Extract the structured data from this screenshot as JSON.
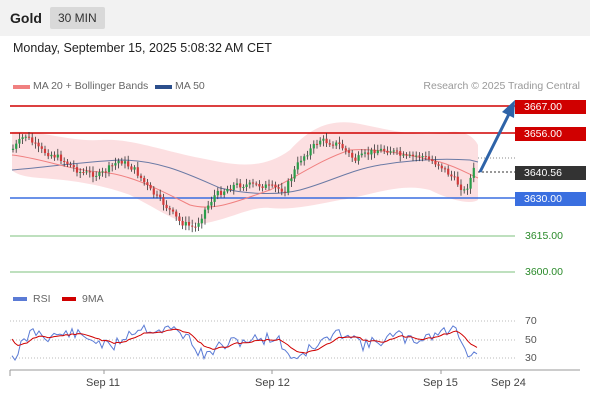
{
  "header": {
    "asset": "Gold",
    "interval": "30 MIN"
  },
  "datetime": "Monday, September 15, 2025 5:08:32 AM CET",
  "legend": {
    "ma20": {
      "label": "MA 20 + Bollinger Bands",
      "color": "#f08080"
    },
    "ma50": {
      "label": "MA 50",
      "color": "#2c4f8c"
    },
    "copyright": "Research © 2025 Trading Central"
  },
  "price_levels": {
    "r2": "3667.00",
    "r1": "3656.00",
    "current": "3640.56",
    "pivot": "3630.00",
    "s1": "3615.00",
    "s2": "3600.00"
  },
  "rsi_legend": {
    "rsi": "RSI",
    "ma9": "9MA",
    "rsi_color": "#5b7bd5",
    "ma9_color": "#d00000"
  },
  "rsi_ticks": [
    "70",
    "50",
    "30"
  ],
  "x_axis": [
    "Sep 11",
    "Sep 12",
    "Sep 15",
    "Sep 24"
  ],
  "colors": {
    "resistance": "#d00000",
    "pivot": "#3a6fe0",
    "support": "#7ec27e",
    "current": "#333333",
    "arrow": "#2e63a8"
  }
}
